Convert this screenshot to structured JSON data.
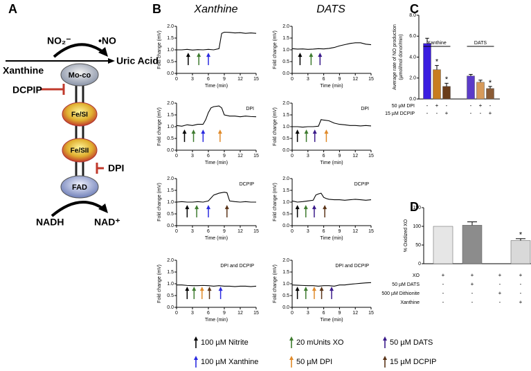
{
  "panel_labels": [
    "A",
    "B",
    "C",
    "D"
  ],
  "column_titles": [
    "Xanthine",
    "DATS"
  ],
  "diagram": {
    "no2": "NO₂⁻",
    "no": "•NO",
    "uric_acid": "Uric Acid",
    "xanthine": "Xanthine",
    "moco": "Mo-co",
    "dcpip": "DCPIP",
    "fesi": "Fe/SI",
    "fesii": "Fe/SII",
    "dpi": "DPI",
    "fad": "FAD",
    "nadh": "NADH",
    "nad": "NAD⁺"
  },
  "chart_data": [
    {
      "type": "line",
      "xlabel": "Time (min)",
      "ylabel": "Fold change (mV)",
      "color": "#000000",
      "x": [
        0,
        1,
        2,
        3,
        4,
        5,
        6,
        7,
        8,
        8.5,
        9,
        10,
        11,
        12,
        13,
        14,
        15
      ],
      "values": [
        1.0,
        1.0,
        1.02,
        0.99,
        1.01,
        1.0,
        1.02,
        1.0,
        1.05,
        1.7,
        1.75,
        1.74,
        1.72,
        1.73,
        1.7,
        1.72,
        1.7
      ],
      "xlim": [
        0,
        15
      ],
      "ylim": [
        0,
        2
      ],
      "xticks": [
        0,
        3,
        6,
        9,
        12,
        15
      ],
      "yticks": [
        {
          "value": 0,
          "label": "0.0"
        },
        {
          "value": 0.5,
          "label": "0.5"
        },
        {
          "value": 1,
          "label": "1.0"
        },
        {
          "value": 1.5,
          "label": "1.5"
        },
        {
          "value": 2,
          "label": "2.0"
        }
      ],
      "arrows": [
        {
          "x": 2.2,
          "color": "#000000"
        },
        {
          "x": 4.2,
          "color": "#3e7b2f"
        },
        {
          "x": 6.0,
          "color": "#2a2ae0"
        }
      ]
    },
    {
      "type": "line",
      "xlabel": "Time (min)",
      "ylabel": "Fold change (mV)",
      "color": "#000000",
      "x": [
        0,
        1,
        2,
        3,
        4,
        5,
        6,
        7,
        8,
        9,
        10,
        11,
        12,
        13,
        14,
        15
      ],
      "values": [
        1.05,
        1.03,
        1.04,
        1.02,
        1.03,
        1.05,
        1.04,
        1.06,
        1.1,
        1.17,
        1.22,
        1.27,
        1.3,
        1.3,
        1.24,
        1.22
      ],
      "xlim": [
        0,
        15
      ],
      "ylim": [
        0,
        2
      ],
      "xticks": [
        0,
        3,
        6,
        9,
        12,
        15
      ],
      "yticks": [
        {
          "value": 0,
          "label": "0.0"
        },
        {
          "value": 0.5,
          "label": "0.5"
        },
        {
          "value": 1,
          "label": "1.0"
        },
        {
          "value": 1.5,
          "label": "1.5"
        },
        {
          "value": 2,
          "label": "2.0"
        }
      ],
      "arrows": [
        {
          "x": 1.5,
          "color": "#000000"
        },
        {
          "x": 3.6,
          "color": "#3e7b2f"
        },
        {
          "x": 5.3,
          "color": "#3a1a8a"
        }
      ]
    },
    {
      "type": "line",
      "subtitle": "DPI",
      "xlabel": "Time (min)",
      "ylabel": "Fold change (mV)",
      "color": "#000000",
      "x": [
        0,
        1,
        2,
        3,
        4,
        5,
        5.5,
        6,
        6.5,
        7,
        8,
        8.5,
        9,
        10,
        11,
        12,
        13,
        14,
        15
      ],
      "values": [
        1.05,
        1.02,
        1.08,
        1.05,
        1.1,
        1.1,
        1.3,
        1.6,
        1.8,
        1.85,
        1.88,
        1.8,
        1.5,
        1.45,
        1.45,
        1.42,
        1.45,
        1.43,
        1.42
      ],
      "xlim": [
        0,
        15
      ],
      "ylim": [
        0,
        2
      ],
      "xticks": [
        0,
        3,
        6,
        9,
        12,
        15
      ],
      "yticks": [
        {
          "value": 0,
          "label": "0.0"
        },
        {
          "value": 0.5,
          "label": "0.5"
        },
        {
          "value": 1,
          "label": "1.0"
        },
        {
          "value": 1.5,
          "label": "1.5"
        },
        {
          "value": 2,
          "label": "2.0"
        }
      ],
      "arrows": [
        {
          "x": 1.5,
          "color": "#000000"
        },
        {
          "x": 3.2,
          "color": "#3e7b2f"
        },
        {
          "x": 5.0,
          "color": "#2a2ae0"
        },
        {
          "x": 8.2,
          "color": "#e08a2a"
        }
      ]
    },
    {
      "type": "line",
      "subtitle": "DPI",
      "xlabel": "Time (min)",
      "ylabel": "Fold change (mV)",
      "color": "#000000",
      "x": [
        0,
        1,
        2,
        3,
        4,
        5,
        5.5,
        6,
        7,
        8,
        9,
        10,
        11,
        12,
        13,
        14,
        15
      ],
      "values": [
        1.0,
        1.0,
        0.98,
        1.0,
        1.0,
        1.02,
        1.3,
        1.28,
        1.25,
        1.15,
        1.1,
        1.08,
        1.05,
        1.05,
        1.03,
        1.05,
        1.03
      ],
      "xlim": [
        0,
        15
      ],
      "ylim": [
        0,
        2
      ],
      "xticks": [
        0,
        3,
        6,
        9,
        12,
        15
      ],
      "yticks": [
        {
          "value": 0,
          "label": "0.0"
        },
        {
          "value": 0.5,
          "label": "0.5"
        },
        {
          "value": 1,
          "label": "1.0"
        },
        {
          "value": 1.5,
          "label": "1.5"
        },
        {
          "value": 2,
          "label": "2.0"
        }
      ],
      "arrows": [
        {
          "x": 1.0,
          "color": "#000000"
        },
        {
          "x": 2.7,
          "color": "#3e7b2f"
        },
        {
          "x": 4.3,
          "color": "#3a1a8a"
        },
        {
          "x": 6.5,
          "color": "#e08a2a"
        }
      ]
    },
    {
      "type": "line",
      "subtitle": "DCPIP",
      "xlabel": "Time (min)",
      "ylabel": "Fold change (mV)",
      "color": "#000000",
      "x": [
        0,
        1,
        2,
        3,
        4,
        5,
        6,
        7,
        8,
        9,
        9.5,
        10,
        11,
        12,
        13,
        14,
        15
      ],
      "values": [
        1.0,
        1.02,
        1.0,
        1.0,
        1.02,
        1.0,
        1.05,
        1.3,
        1.38,
        1.42,
        1.4,
        1.05,
        1.02,
        1.0,
        1.02,
        1.0,
        1.0
      ],
      "xlim": [
        0,
        15
      ],
      "ylim": [
        0,
        2
      ],
      "xticks": [
        0,
        3,
        6,
        9,
        12,
        15
      ],
      "yticks": [
        {
          "value": 0,
          "label": "0.0"
        },
        {
          "value": 0.5,
          "label": "0.5"
        },
        {
          "value": 1,
          "label": "1.0"
        },
        {
          "value": 1.5,
          "label": "1.5"
        },
        {
          "value": 2,
          "label": "2.0"
        }
      ],
      "arrows": [
        {
          "x": 2.0,
          "color": "#000000"
        },
        {
          "x": 3.8,
          "color": "#3e7b2f"
        },
        {
          "x": 6.0,
          "color": "#2a2ae0"
        },
        {
          "x": 9.5,
          "color": "#5a3418"
        }
      ]
    },
    {
      "type": "line",
      "subtitle": "DCPIP",
      "xlabel": "Time (min)",
      "ylabel": "Fold change (mV)",
      "color": "#000000",
      "x": [
        0,
        1,
        2,
        3,
        4,
        4.5,
        5,
        5.5,
        6,
        6.5,
        7,
        8,
        9,
        10,
        11,
        12,
        13,
        14,
        15
      ],
      "values": [
        1.05,
        1.0,
        1.02,
        1.05,
        1.08,
        1.3,
        1.35,
        1.38,
        1.2,
        1.15,
        1.12,
        1.1,
        1.1,
        1.08,
        1.1,
        1.12,
        1.1,
        1.08,
        1.1
      ],
      "xlim": [
        0,
        15
      ],
      "ylim": [
        0,
        2
      ],
      "xticks": [
        0,
        3,
        6,
        9,
        12,
        15
      ],
      "yticks": [
        {
          "value": 0,
          "label": "0.0"
        },
        {
          "value": 0.5,
          "label": "0.5"
        },
        {
          "value": 1,
          "label": "1.0"
        },
        {
          "value": 1.5,
          "label": "1.5"
        },
        {
          "value": 2,
          "label": "2.0"
        }
      ],
      "arrows": [
        {
          "x": 1.0,
          "color": "#000000"
        },
        {
          "x": 2.6,
          "color": "#3e7b2f"
        },
        {
          "x": 4.2,
          "color": "#3a1a8a"
        },
        {
          "x": 6.2,
          "color": "#5a3418"
        }
      ]
    },
    {
      "type": "line",
      "subtitle": "DPI and DCPIP",
      "xlabel": "Time (min)",
      "ylabel": "Fold change (mV)",
      "color": "#000000",
      "x": [
        0,
        1,
        2,
        3,
        4,
        5,
        6,
        7,
        8,
        9,
        10,
        11,
        12,
        13,
        14,
        15
      ],
      "values": [
        0.95,
        0.95,
        0.93,
        0.92,
        0.92,
        0.93,
        0.92,
        0.9,
        0.92,
        0.9,
        0.9,
        0.88,
        0.9,
        0.9,
        0.88,
        0.9
      ],
      "xlim": [
        0,
        15
      ],
      "ylim": [
        0,
        2
      ],
      "xticks": [
        0,
        3,
        6,
        9,
        12,
        15
      ],
      "yticks": [
        {
          "value": 0,
          "label": "0.0"
        },
        {
          "value": 0.5,
          "label": "0.5"
        },
        {
          "value": 1,
          "label": "1.0"
        },
        {
          "value": 1.5,
          "label": "1.5"
        },
        {
          "value": 2,
          "label": "2.0"
        }
      ],
      "arrows": [
        {
          "x": 2.0,
          "color": "#000000"
        },
        {
          "x": 3.3,
          "color": "#3e7b2f"
        },
        {
          "x": 4.8,
          "color": "#e08a2a"
        },
        {
          "x": 6.2,
          "color": "#5a3418"
        },
        {
          "x": 8.3,
          "color": "#2a2ae0"
        }
      ]
    },
    {
      "type": "line",
      "subtitle": "DPI and DCPIP",
      "xlabel": "Time (min)",
      "ylabel": "Fold change (mV)",
      "color": "#000000",
      "x": [
        0,
        1,
        2,
        3,
        4,
        5,
        6,
        7,
        8,
        9,
        10,
        11,
        12,
        13,
        14,
        15
      ],
      "values": [
        0.95,
        0.94,
        0.93,
        0.92,
        0.92,
        0.9,
        0.92,
        0.92,
        0.9,
        0.95,
        0.95,
        0.98,
        1.0,
        1.02,
        1.04,
        1.05
      ],
      "xlim": [
        0,
        15
      ],
      "ylim": [
        0,
        2
      ],
      "xticks": [
        0,
        3,
        6,
        9,
        12,
        15
      ],
      "yticks": [
        {
          "value": 0,
          "label": "0.0"
        },
        {
          "value": 0.5,
          "label": "0.5"
        },
        {
          "value": 1,
          "label": "1.0"
        },
        {
          "value": 1.5,
          "label": "1.5"
        },
        {
          "value": 2,
          "label": "2.0"
        }
      ],
      "arrows": [
        {
          "x": 1.0,
          "color": "#000000"
        },
        {
          "x": 2.6,
          "color": "#3e7b2f"
        },
        {
          "x": 4.2,
          "color": "#e08a2a"
        },
        {
          "x": 5.6,
          "color": "#5a3418"
        },
        {
          "x": 7.5,
          "color": "#3a1a8a"
        }
      ]
    },
    {
      "type": "bar",
      "ylabel": [
        "Average rate of NO production",
        "(µmol/mol donor/min)"
      ],
      "group_labels": [
        "Xanthine",
        "DATS"
      ],
      "values": [
        5.3,
        2.8,
        1.2,
        2.2,
        1.6,
        1.0
      ],
      "errors": [
        0.5,
        0.4,
        0.3,
        0.15,
        0.2,
        0.2
      ],
      "colors": [
        "#3a1de0",
        "#c87d1e",
        "#6a3d1a",
        "#5b3bc9",
        "#d79a5a",
        "#8a5a34"
      ],
      "significance": [
        null,
        "*",
        "*",
        null,
        null,
        "*"
      ],
      "ylim": [
        0,
        8
      ],
      "yticks": [
        {
          "value": 0,
          "label": "0.0"
        },
        {
          "value": 2,
          "label": "2.0"
        },
        {
          "value": 4,
          "label": "4.0"
        },
        {
          "value": 6,
          "label": "6.0"
        },
        {
          "value": 8,
          "label": "8.0"
        }
      ],
      "conditions": [
        {
          "label": "50 µM DPI",
          "signs": [
            "-",
            "+",
            "-",
            "-",
            "+",
            "-"
          ]
        },
        {
          "label": "15 µM DCPIP",
          "signs": [
            "-",
            "-",
            "+",
            "-",
            "-",
            "+"
          ]
        }
      ]
    },
    {
      "type": "bar",
      "ylabel": [
        "% Oxidized XO"
      ],
      "values": [
        100,
        103,
        null,
        62
      ],
      "errors": [
        null,
        9,
        null,
        5
      ],
      "colors": [
        "#e6e6e6",
        "#8c8c8c",
        "#bdbdbd",
        "#d9d9d9"
      ],
      "significance": [
        null,
        null,
        null,
        "*"
      ],
      "ylim": [
        0,
        150
      ],
      "yticks": [
        0,
        50,
        100,
        150
      ],
      "conditions": [
        {
          "label": "XO",
          "signs": [
            "+",
            "+",
            "+",
            "+"
          ]
        },
        {
          "label": "50 µM DATS",
          "signs": [
            "-",
            "+",
            "-",
            "-"
          ]
        },
        {
          "label": "500 µM Dithionite",
          "signs": [
            "-",
            "-",
            "+",
            "-"
          ]
        },
        {
          "label": "Xanthine",
          "signs": [
            "-",
            "-",
            "-",
            "+"
          ]
        }
      ]
    }
  ],
  "legend": [
    {
      "label": "100 µM Nitrite",
      "color": "#000000"
    },
    {
      "label": "20 mUnits XO",
      "color": "#3e7b2f"
    },
    {
      "label": "50 µM DATS",
      "color": "#3a1a8a"
    },
    {
      "label": "100 µM Xanthine",
      "color": "#2a2ae0"
    },
    {
      "label": "50 µM DPI",
      "color": "#e08a2a"
    },
    {
      "label": "15 µM DCPIP",
      "color": "#5a3418"
    }
  ]
}
